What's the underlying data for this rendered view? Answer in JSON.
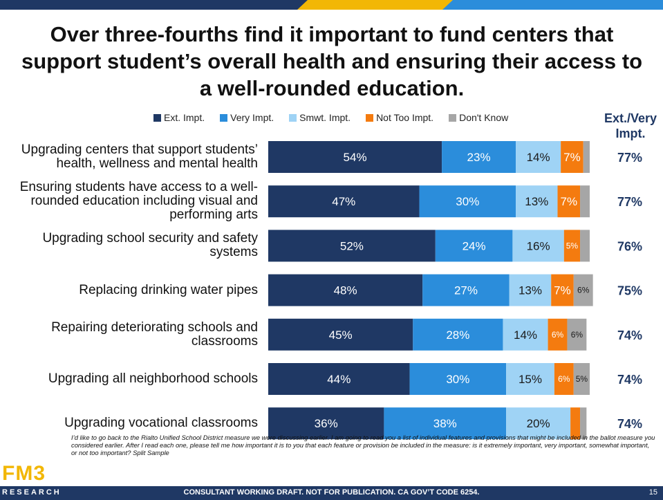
{
  "chart_data": {
    "type": "stacked-bar",
    "title": "Over three-fourths find it important to fund centers that support student’s overall health and ensuring their access to a well-rounded education.",
    "categories": [
      "Upgrading centers that support students’ health, wellness and mental health",
      "Ensuring students have access to a well-rounded education including visual and performing arts",
      "Upgrading school security and safety systems",
      "Replacing drinking water pipes",
      "Repairing deteriorating schools and classrooms",
      "Upgrading all neighborhood schools",
      "Upgrading vocational classrooms"
    ],
    "series": [
      {
        "name": "Ext. Impt.",
        "color": "#1f3864",
        "values": [
          54,
          47,
          52,
          48,
          45,
          44,
          36
        ],
        "value_labels": [
          "54%",
          "47%",
          "52%",
          "48%",
          "45%",
          "44%",
          "36%"
        ]
      },
      {
        "name": "Very Impt.",
        "color": "#2b8ddb",
        "values": [
          23,
          30,
          24,
          27,
          28,
          30,
          38
        ],
        "value_labels": [
          "23%",
          "30%",
          "24%",
          "27%",
          "28%",
          "30%",
          "38%"
        ]
      },
      {
        "name": "Smwt. Impt.",
        "color": "#9fd3f5",
        "values": [
          14,
          13,
          16,
          13,
          14,
          15,
          20
        ],
        "value_labels": [
          "14%",
          "13%",
          "16%",
          "13%",
          "14%",
          "15%",
          "20%"
        ]
      },
      {
        "name": "Not Too Impt.",
        "color": "#f47b0f",
        "values": [
          7,
          7,
          5,
          7,
          6,
          6,
          3
        ],
        "value_labels": [
          "7%",
          "7%",
          "5%",
          "7%",
          "6%",
          "6%",
          null
        ]
      },
      {
        "name": "Don't Know",
        "color": "#a6a6a6",
        "values": [
          2,
          3,
          3,
          6,
          6,
          5,
          2
        ],
        "value_labels": [
          null,
          null,
          null,
          "6%",
          "6%",
          "5%",
          null
        ]
      }
    ],
    "net": {
      "label": "Ext./Very Impt.",
      "values": [
        77,
        77,
        76,
        75,
        74,
        74,
        74
      ],
      "value_labels": [
        "77%",
        "77%",
        "76%",
        "75%",
        "74%",
        "74%",
        "74%"
      ]
    }
  },
  "footnote": "I’d like to go back to the Rialto Unified School District measure we were discussing earlier. I am going to read you a list of individual features and provisions that might be included in the ballot measure you considered earlier. After I read each one, please tell me how important it is to you that each feature or provision be included in the measure: is it extremely important, very important, somewhat important, or not too important? Split Sample",
  "footer": "CONSULTANT WORKING DRAFT. NOT FOR PUBLICATION. CA GOV’T CODE 6254.",
  "page_number": "15",
  "logo": {
    "name": "FM3",
    "subtitle": "RESEARCH"
  }
}
